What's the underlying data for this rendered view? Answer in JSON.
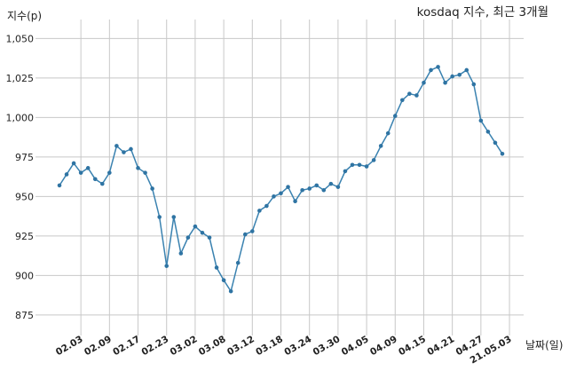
{
  "chart_data": {
    "type": "line",
    "title": "kosdaq 지수, 최근 3개월",
    "xlabel": "날짜(일)",
    "ylabel": "지수(p)",
    "ylim": [
      862,
      1062
    ],
    "yticks": [
      875,
      900,
      925,
      950,
      975,
      1000,
      1025,
      1050
    ],
    "ytick_labels": [
      "875",
      "900",
      "925",
      "950",
      "975",
      "1,000",
      "1,025",
      "1,050"
    ],
    "xtick_labels": [
      "02.03",
      "02.09",
      "02.17",
      "02.23",
      "03.02",
      "03.08",
      "03.12",
      "03.18",
      "03.24",
      "03.30",
      "04.05",
      "04.09",
      "04.15",
      "04.21",
      "04.27",
      "21.05.03"
    ],
    "xtick_index": [
      3,
      7,
      11,
      15,
      19,
      23,
      27,
      31,
      35,
      39,
      43,
      47,
      51,
      55,
      59,
      63
    ],
    "grid": true,
    "series": [
      {
        "values": [
          957,
          964,
          971,
          965,
          968,
          961,
          958,
          965,
          982,
          978,
          980,
          968,
          965,
          955,
          937,
          906,
          937,
          914,
          924,
          931,
          927,
          924,
          905,
          897,
          890,
          908,
          926,
          928,
          941,
          944,
          950,
          952,
          956,
          947,
          954,
          955,
          957,
          954,
          958,
          956,
          966,
          970,
          970,
          969,
          973,
          982,
          990,
          1001,
          1011,
          1015,
          1014,
          1022,
          1030,
          1032,
          1022,
          1026,
          1027,
          1030,
          1021,
          998,
          991,
          984,
          977
        ]
      }
    ]
  }
}
